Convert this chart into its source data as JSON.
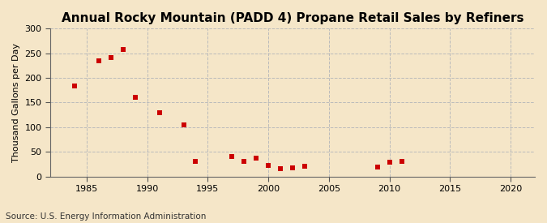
{
  "title": "Annual Rocky Mountain (PADD 4) Propane Retail Sales by Refiners",
  "ylabel": "Thousand Gallons per Day",
  "source": "Source: U.S. Energy Information Administration",
  "background_color": "#f5e6c8",
  "plot_background_color": "#f5e6c8",
  "marker_color": "#cc0000",
  "grid_color": "#bbbbbb",
  "years": [
    1984,
    1986,
    1987,
    1988,
    1989,
    1991,
    1993,
    1994,
    1997,
    1998,
    1999,
    2000,
    2001,
    2002,
    2003,
    2009,
    2010,
    2011
  ],
  "values": [
    184,
    234,
    241,
    258,
    160,
    130,
    105,
    30,
    40,
    31,
    37,
    22,
    15,
    18,
    20,
    19,
    29,
    31
  ],
  "xlim": [
    1982,
    2022
  ],
  "ylim": [
    0,
    300
  ],
  "xticks": [
    1985,
    1990,
    1995,
    2000,
    2005,
    2010,
    2015,
    2020
  ],
  "yticks": [
    0,
    50,
    100,
    150,
    200,
    250,
    300
  ],
  "title_fontsize": 11,
  "ylabel_fontsize": 8,
  "tick_fontsize": 8,
  "source_fontsize": 7.5,
  "marker_size": 20
}
